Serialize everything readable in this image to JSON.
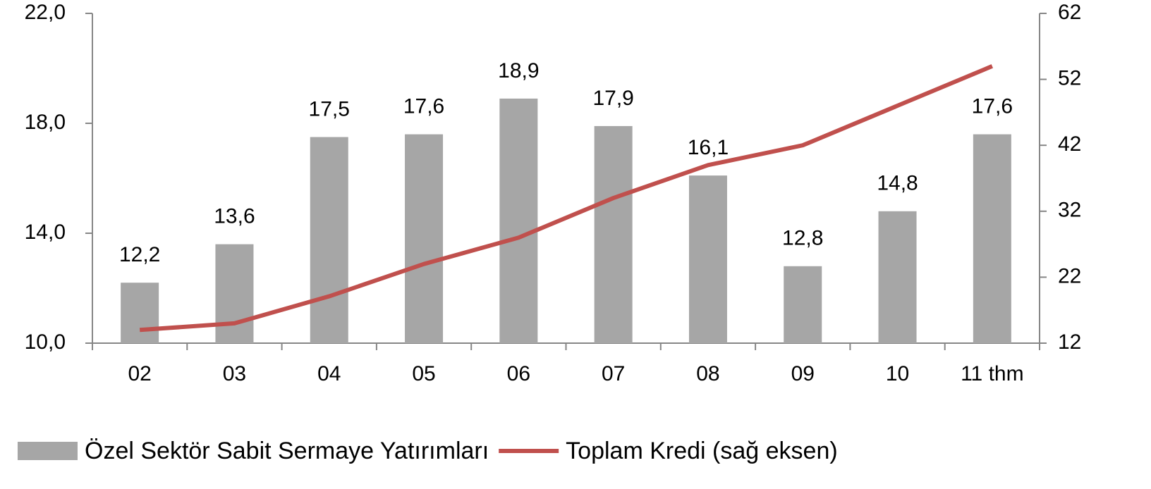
{
  "chart_data": {
    "type": "bar_line",
    "categories": [
      "02",
      "03",
      "04",
      "05",
      "06",
      "07",
      "08",
      "09",
      "10",
      "11 thm"
    ],
    "series": [
      {
        "name": "Özel Sektör Sabit Sermaye Yatırımları",
        "color": "#a6a6a6",
        "type": "bar",
        "axis": "y",
        "values": [
          12.2,
          13.6,
          17.5,
          17.6,
          18.9,
          17.9,
          16.1,
          12.8,
          14.8,
          17.6
        ],
        "value_labels": [
          "12,2",
          "13,6",
          "17,5",
          "17,6",
          "18,9",
          "17,9",
          "16,1",
          "12,8",
          "14,8",
          "17,6"
        ]
      },
      {
        "name": "Toplam Kredi (sağ eksen)",
        "color": "#c0504d",
        "type": "line",
        "axis": "y2",
        "values": [
          14.0,
          15.0,
          19.1,
          24.0,
          28.0,
          34.0,
          39.0,
          42.0,
          48.0,
          54.0
        ]
      }
    ],
    "ylim": [
      10,
      22
    ],
    "yticks": [
      {
        "value": 10,
        "label": "10,0"
      },
      {
        "value": 14,
        "label": "14,0"
      },
      {
        "value": 18,
        "label": "18,0"
      },
      {
        "value": 22,
        "label": "22,0"
      }
    ],
    "y2lim": [
      12,
      62
    ],
    "y2ticks": [
      12,
      22,
      32,
      42,
      52,
      62
    ],
    "legend": "bottom"
  }
}
